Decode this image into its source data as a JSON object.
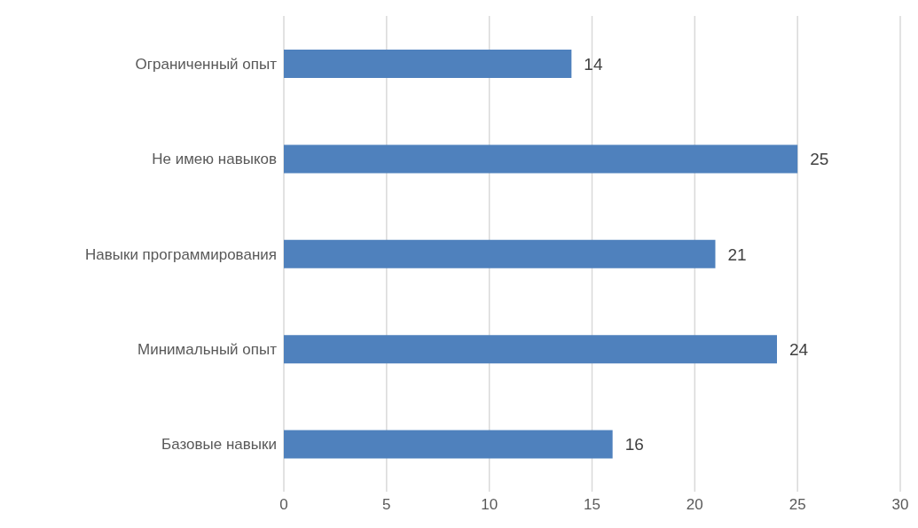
{
  "chart_data": {
    "type": "bar",
    "orientation": "horizontal",
    "categories": [
      "Ограниченный опыт",
      "Не имею навыков",
      "Навыки программирования",
      "Минимальный опыт",
      "Базовые навыки"
    ],
    "values": [
      14,
      25,
      21,
      24,
      16
    ],
    "color": "#4f81bd",
    "xlim": [
      0,
      30
    ],
    "xticks": [
      0,
      5,
      10,
      15,
      20,
      25,
      30
    ],
    "grid": "x",
    "data_labels": true
  }
}
